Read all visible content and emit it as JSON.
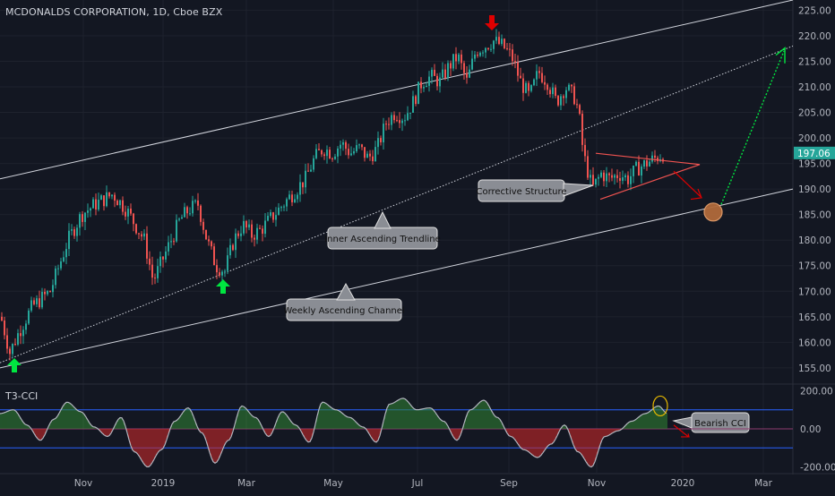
{
  "header": {
    "title": "MCDONALDS CORPORATION, 1D, Cboe BZX"
  },
  "indicator": {
    "title": "T3-CCI"
  },
  "price_axis": {
    "ticks": [
      "225.00",
      "220.00",
      "215.00",
      "210.00",
      "205.00",
      "200.00",
      "195.00",
      "190.00",
      "185.00",
      "180.00",
      "175.00",
      "170.00",
      "165.00",
      "160.00",
      "155.00"
    ],
    "tick_values": [
      225,
      220,
      215,
      210,
      205,
      200,
      195,
      190,
      185,
      180,
      175,
      170,
      165,
      160,
      155
    ],
    "last_price": "197.06",
    "last_price_color": "#26a69a"
  },
  "cci_axis": {
    "ticks": [
      "200.00",
      "0.00",
      "-200.00"
    ],
    "tick_values": [
      200,
      0,
      -200
    ]
  },
  "time_axis": {
    "labels": [
      "Nov",
      "2019",
      "Mar",
      "May",
      "Jul",
      "Sep",
      "Nov",
      "2020",
      "Mar"
    ]
  },
  "annotations": {
    "corrective_structure": "Corrective Structure",
    "inner_trendline": "Inner Ascending Trendline",
    "weekly_channel": "Weekly Ascending Channel",
    "bearish_cci": "Bearish CCI"
  },
  "colors": {
    "background": "#131722",
    "up": "#26a69a",
    "down": "#ef5350",
    "grid": "#1e222d",
    "cci_line": "#b2b5be",
    "cci_pos": "#2e7d32",
    "cci_neg": "#c62828",
    "band": "#2962ff",
    "arrow_green": "#00e640",
    "arrow_red": "#e00000",
    "callout": "#8a8d94"
  },
  "chart_data": [
    {
      "type": "candlestick",
      "title": "MCDONALDS CORPORATION, 1D, Cboe BZX",
      "ylim": [
        152,
        227
      ],
      "x_labels": [
        "Nov",
        "2019",
        "Mar",
        "May",
        "Jul",
        "Sep",
        "Nov",
        "2020",
        "Mar"
      ],
      "price_path": [
        [
          0,
          165
        ],
        [
          10,
          158
        ],
        [
          20,
          162
        ],
        [
          35,
          167
        ],
        [
          55,
          170
        ],
        [
          75,
          180
        ],
        [
          90,
          185
        ],
        [
          105,
          187
        ],
        [
          115,
          188
        ],
        [
          125,
          189
        ],
        [
          140,
          186
        ],
        [
          150,
          183
        ],
        [
          160,
          180
        ],
        [
          170,
          172
        ],
        [
          180,
          176
        ],
        [
          190,
          180
        ],
        [
          200,
          184
        ],
        [
          210,
          186
        ],
        [
          220,
          187
        ],
        [
          230,
          180
        ],
        [
          240,
          175
        ],
        [
          250,
          174
        ],
        [
          260,
          180
        ],
        [
          270,
          183
        ],
        [
          280,
          181
        ],
        [
          290,
          182
        ],
        [
          300,
          184
        ],
        [
          310,
          186
        ],
        [
          320,
          188
        ],
        [
          330,
          190
        ],
        [
          340,
          192
        ],
        [
          350,
          196
        ],
        [
          360,
          198
        ],
        [
          370,
          197
        ],
        [
          380,
          199
        ],
        [
          390,
          197
        ],
        [
          400,
          198
        ],
        [
          410,
          196
        ],
        [
          420,
          198
        ],
        [
          430,
          203
        ],
        [
          440,
          205
        ],
        [
          450,
          204
        ],
        [
          460,
          207
        ],
        [
          470,
          211
        ],
        [
          480,
          212
        ],
        [
          490,
          211
        ],
        [
          500,
          214
        ],
        [
          510,
          216
        ],
        [
          520,
          211
        ],
        [
          530,
          217
        ],
        [
          540,
          218
        ],
        [
          550,
          219
        ],
        [
          560,
          218
        ],
        [
          570,
          216
        ],
        [
          580,
          211
        ],
        [
          590,
          208
        ],
        [
          600,
          213
        ],
        [
          610,
          211
        ],
        [
          620,
          207
        ],
        [
          630,
          210
        ],
        [
          640,
          208
        ],
        [
          645,
          205
        ],
        [
          650,
          197
        ],
        [
          660,
          190
        ],
        [
          670,
          193
        ],
        [
          680,
          192
        ],
        [
          690,
          193
        ],
        [
          700,
          192
        ],
        [
          710,
          194
        ],
        [
          720,
          195
        ],
        [
          730,
          196
        ],
        [
          740,
          197
        ]
      ],
      "last_price": 197.06,
      "lines": [
        {
          "name": "Weekly Ascending Channel upper",
          "from": [
            0,
            192
          ],
          "to": [
            885,
            227
          ],
          "style": "solid"
        },
        {
          "name": "Weekly Ascending Channel lower",
          "from": [
            0,
            155
          ],
          "to": [
            885,
            190
          ],
          "style": "solid"
        },
        {
          "name": "Inner Ascending Trendline",
          "from": [
            0,
            156
          ],
          "to": [
            885,
            218
          ],
          "style": "dotted"
        }
      ],
      "projection": {
        "low_target": 185.5,
        "high_target": 217
      }
    },
    {
      "type": "histogram",
      "title": "T3-CCI",
      "ylim": [
        -230,
        230
      ],
      "bands": [
        100,
        -100
      ],
      "cci_path": [
        [
          0,
          80
        ],
        [
          15,
          100
        ],
        [
          30,
          20
        ],
        [
          45,
          -60
        ],
        [
          60,
          50
        ],
        [
          75,
          140
        ],
        [
          90,
          90
        ],
        [
          105,
          10
        ],
        [
          120,
          -40
        ],
        [
          135,
          60
        ],
        [
          150,
          -120
        ],
        [
          165,
          -200
        ],
        [
          180,
          -110
        ],
        [
          195,
          40
        ],
        [
          210,
          110
        ],
        [
          225,
          -20
        ],
        [
          240,
          -180
        ],
        [
          255,
          -60
        ],
        [
          270,
          120
        ],
        [
          285,
          60
        ],
        [
          300,
          -40
        ],
        [
          315,
          90
        ],
        [
          330,
          20
        ],
        [
          345,
          -70
        ],
        [
          360,
          140
        ],
        [
          375,
          100
        ],
        [
          390,
          60
        ],
        [
          405,
          10
        ],
        [
          420,
          -70
        ],
        [
          435,
          130
        ],
        [
          450,
          160
        ],
        [
          465,
          100
        ],
        [
          480,
          110
        ],
        [
          495,
          40
        ],
        [
          510,
          -60
        ],
        [
          525,
          100
        ],
        [
          540,
          150
        ],
        [
          555,
          60
        ],
        [
          570,
          -40
        ],
        [
          585,
          -110
        ],
        [
          600,
          -150
        ],
        [
          615,
          -80
        ],
        [
          630,
          20
        ],
        [
          645,
          -120
        ],
        [
          660,
          -200
        ],
        [
          675,
          -40
        ],
        [
          690,
          -10
        ],
        [
          705,
          40
        ],
        [
          720,
          80
        ],
        [
          735,
          120
        ],
        [
          745,
          80
        ]
      ]
    }
  ]
}
